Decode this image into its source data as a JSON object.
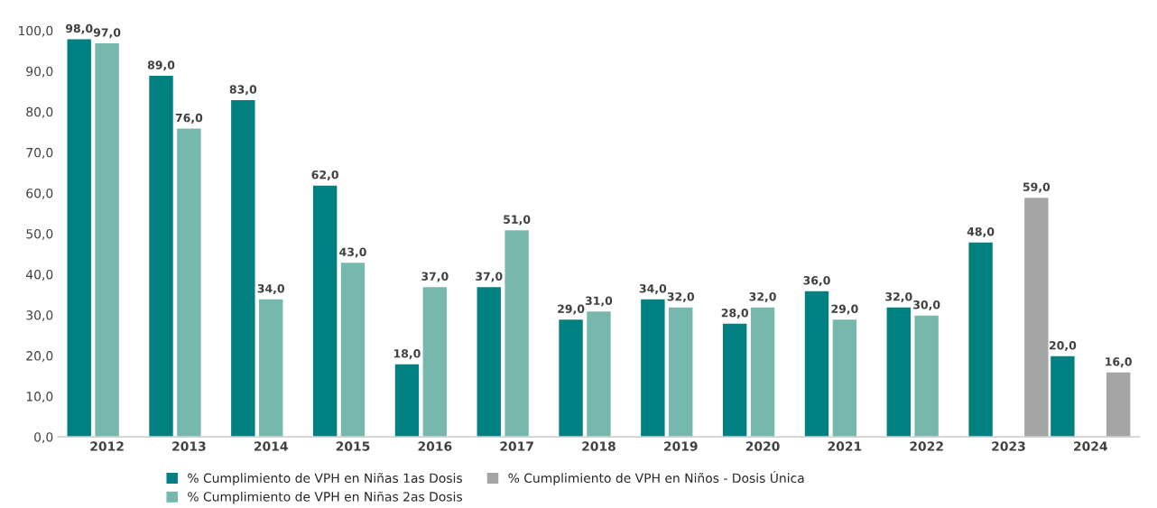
{
  "chart_data": {
    "type": "bar",
    "categories": [
      "2012",
      "2013",
      "2014",
      "2015",
      "2016",
      "2017",
      "2018",
      "2019",
      "2020",
      "2021",
      "2022",
      "2023",
      "2024"
    ],
    "series": [
      {
        "name": "% Cumplimiento de VPH en Niñas 1as Dosis",
        "color": "#008080",
        "values": [
          98,
          89,
          83,
          62,
          18,
          37,
          29,
          34,
          28,
          36,
          32,
          48,
          20
        ],
        "value_labels": [
          "98,0",
          "89,0",
          "83,0",
          "62,0",
          "18,0",
          "37,0",
          "29,0",
          "34,0",
          "28,0",
          "36,0",
          "32,0",
          "48,0",
          "20,0"
        ]
      },
      {
        "name": "% Cumplimiento de VPH en Niñas 2as Dosis",
        "color": "#76b8ae",
        "values": [
          97,
          76,
          34,
          43,
          37,
          51,
          31,
          32,
          32,
          29,
          30,
          null,
          null
        ],
        "value_labels": [
          "97,0",
          "76,0",
          "34,0",
          "43,0",
          "37,0",
          "51,0",
          "31,0",
          "32,0",
          "32,0",
          "29,0",
          "30,0",
          null,
          null
        ]
      },
      {
        "name": "% Cumplimiento de VPH en Niños - Dosis Única",
        "color": "#a5a5a5",
        "values": [
          null,
          null,
          null,
          null,
          null,
          null,
          null,
          null,
          null,
          null,
          null,
          59,
          16
        ],
        "value_labels": [
          null,
          null,
          null,
          null,
          null,
          null,
          null,
          null,
          null,
          null,
          null,
          "59,0",
          "16,0"
        ]
      }
    ],
    "ylim": [
      0,
      100
    ],
    "yticks": [
      {
        "value": 0,
        "label": "0,0"
      },
      {
        "value": 10,
        "label": "10,0"
      },
      {
        "value": 20,
        "label": "20,0"
      },
      {
        "value": 30,
        "label": "30,0"
      },
      {
        "value": 40,
        "label": "40,0"
      },
      {
        "value": 50,
        "label": "50,0"
      },
      {
        "value": 60,
        "label": "60,0"
      },
      {
        "value": 70,
        "label": "70,0"
      },
      {
        "value": 80,
        "label": "80,0"
      },
      {
        "value": 90,
        "label": "90,0"
      },
      {
        "value": 100,
        "label": "100,0"
      }
    ],
    "grid": false,
    "legend": "bottom"
  }
}
